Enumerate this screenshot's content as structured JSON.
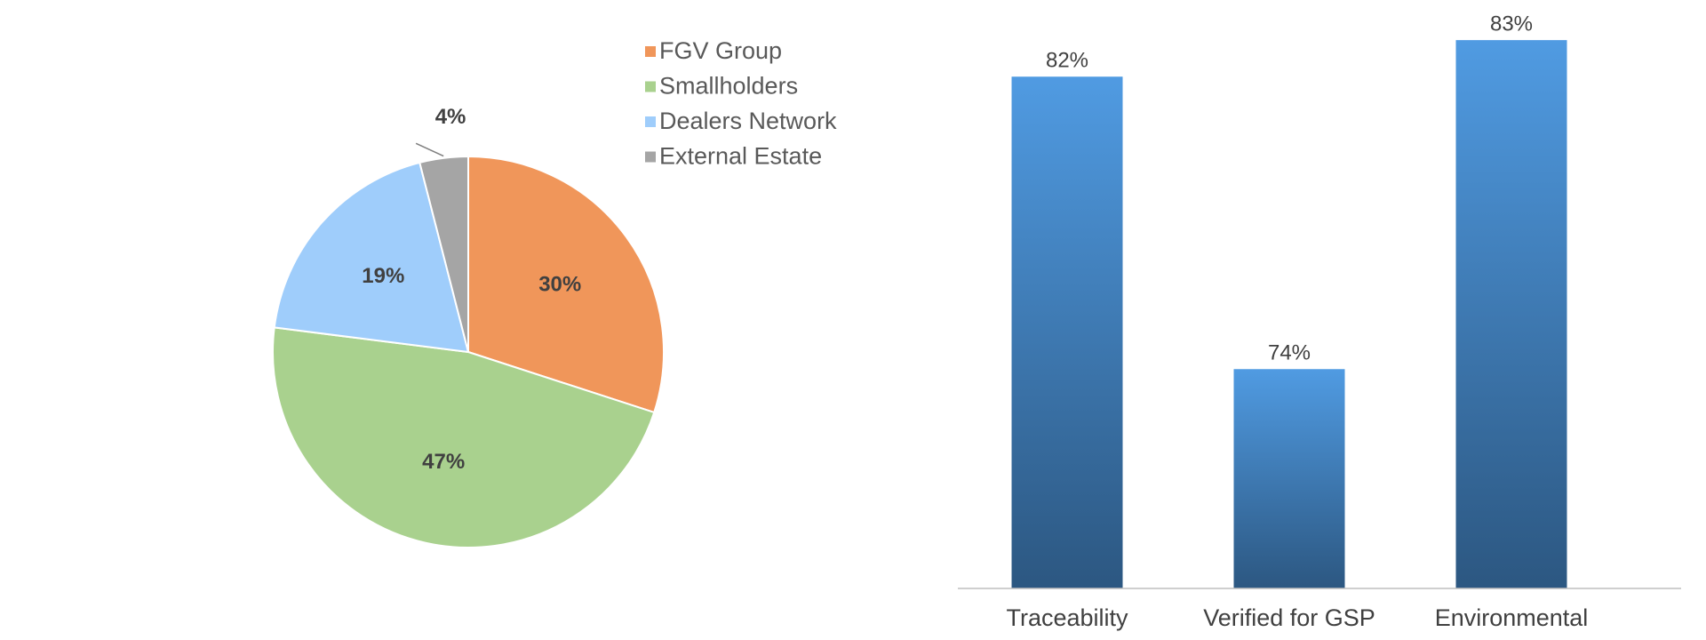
{
  "chart_data": [
    {
      "type": "pie",
      "categories": [
        "FGV Group",
        "Smallholders",
        "Dealers Network",
        "External Estate"
      ],
      "values": [
        30,
        47,
        19,
        4
      ],
      "value_labels": [
        "30%",
        "47%",
        "19%",
        "4%"
      ],
      "colors": [
        "#f0965a",
        "#a9d18e",
        "#9fcdfb",
        "#a5a5a5"
      ]
    },
    {
      "type": "bar",
      "categories": [
        "Traceability",
        "Verified for GSP",
        "Environmental"
      ],
      "values": [
        82,
        74,
        83
      ],
      "value_labels": [
        "82%",
        "74%",
        "83%"
      ],
      "color": "#4a90d9",
      "ylim": [
        68,
        84
      ]
    }
  ]
}
